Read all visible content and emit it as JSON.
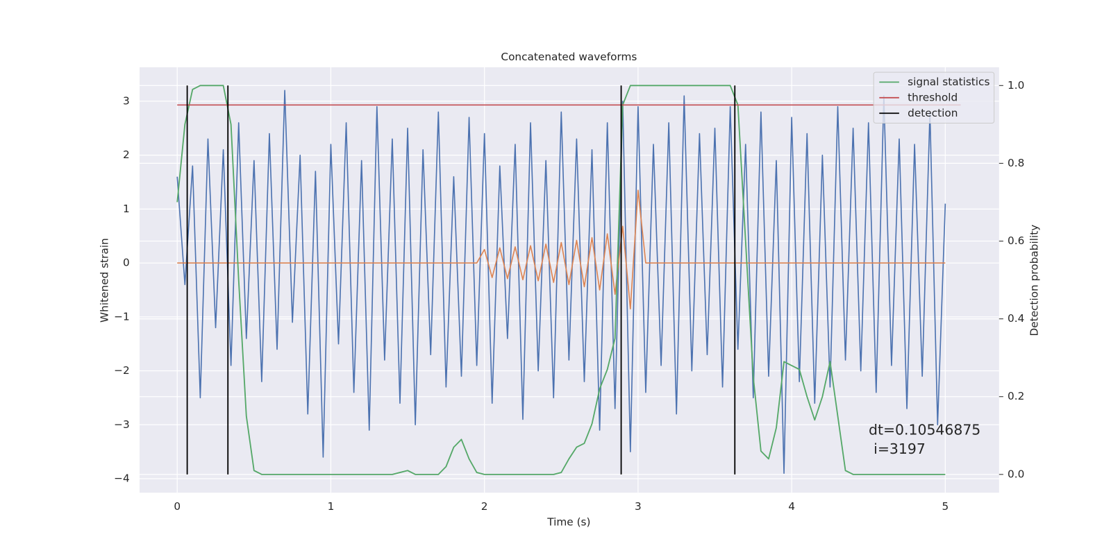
{
  "chart_data": {
    "type": "line",
    "title": "Concatenated waveforms",
    "xlabel": "Time (s)",
    "ylabel": "Whitened strain",
    "y2label": "Detection probability",
    "grid": true,
    "legend": "upper right",
    "xlim": [
      -0.245,
      5.35
    ],
    "xticks": [
      0,
      1,
      2,
      3,
      4,
      5
    ],
    "ylim": [
      -4.26,
      3.63
    ],
    "yticks": [
      {
        "value": -4,
        "label": "−4"
      },
      {
        "value": -3,
        "label": "−3"
      },
      {
        "value": -2,
        "label": "−2"
      },
      {
        "value": -1,
        "label": "−1"
      },
      0,
      1,
      2,
      3
    ],
    "y2lim": [
      -0.047,
      1.047
    ],
    "y2ticks": [
      {
        "value": 0,
        "label": "0.0"
      },
      0.2,
      0.4,
      0.6,
      0.8,
      {
        "value": 1,
        "label": "1.0"
      }
    ],
    "x": [
      0,
      0.05,
      0.1,
      0.15,
      0.2,
      0.25,
      0.3,
      0.35,
      0.4,
      0.45,
      0.5,
      0.55,
      0.6,
      0.65,
      0.7,
      0.75,
      0.8,
      0.85,
      0.9,
      0.95,
      1,
      1.05,
      1.1,
      1.15,
      1.2,
      1.25,
      1.3,
      1.35,
      1.4,
      1.45,
      1.5,
      1.55,
      1.6,
      1.65,
      1.7,
      1.75,
      1.8,
      1.85,
      1.9,
      1.95,
      2,
      2.05,
      2.1,
      2.15,
      2.2,
      2.25,
      2.3,
      2.35,
      2.4,
      2.45,
      2.5,
      2.55,
      2.6,
      2.65,
      2.7,
      2.75,
      2.8,
      2.85,
      2.9,
      2.95,
      3,
      3.05,
      3.1,
      3.15,
      3.2,
      3.25,
      3.3,
      3.35,
      3.4,
      3.45,
      3.5,
      3.55,
      3.6,
      3.65,
      3.7,
      3.75,
      3.8,
      3.85,
      3.9,
      3.95,
      4,
      4.05,
      4.1,
      4.15,
      4.2,
      4.25,
      4.3,
      4.35,
      4.4,
      4.45,
      4.5,
      4.55,
      4.6,
      4.65,
      4.7,
      4.75,
      4.8,
      4.85,
      4.9,
      4.95,
      5
    ],
    "series": [
      {
        "color": "#4c72b0",
        "values": [
          1.6,
          -0.4,
          1.8,
          -2.5,
          2.3,
          -1.2,
          2.1,
          -1.9,
          2.6,
          -1.4,
          1.9,
          -2.2,
          2.4,
          -1.6,
          3.2,
          -1.1,
          2.0,
          -2.8,
          1.7,
          -3.6,
          2.2,
          -1.5,
          2.6,
          -2.4,
          1.9,
          -3.1,
          2.9,
          -1.8,
          2.3,
          -2.6,
          2.5,
          -3.0,
          2.1,
          -1.7,
          2.8,
          -2.3,
          1.6,
          -2.1,
          2.7,
          -1.9,
          2.4,
          -2.6,
          1.8,
          -1.4,
          2.2,
          -2.9,
          2.6,
          -2.0,
          1.9,
          -2.5,
          2.8,
          -1.8,
          2.3,
          -2.2,
          2.1,
          -3.1,
          2.6,
          -2.7,
          3.0,
          -3.5,
          2.9,
          -2.4,
          2.2,
          -1.9,
          2.6,
          -2.8,
          3.1,
          -2.0,
          2.4,
          -1.7,
          2.5,
          -2.3,
          2.9,
          -1.6,
          2.2,
          -2.5,
          2.8,
          -2.1,
          1.9,
          -3.9,
          2.7,
          -2.2,
          2.4,
          -2.6,
          2.0,
          -2.3,
          2.9,
          -1.8,
          2.5,
          -2.0,
          2.6,
          -2.4,
          3.1,
          -1.9,
          2.3,
          -2.7,
          2.2,
          -2.1,
          2.8,
          -3.0,
          1.1
        ]
      },
      {
        "color": "#dd8452",
        "values": [
          0,
          0,
          0,
          0,
          0,
          0,
          0,
          0,
          0,
          0,
          0,
          0,
          0,
          0,
          0,
          0,
          0,
          0,
          0,
          0,
          0,
          0,
          0,
          0,
          0,
          0,
          0,
          0,
          0,
          0,
          0,
          0,
          0,
          0,
          0,
          0,
          0,
          0,
          0,
          0,
          0.25,
          -0.27,
          0.28,
          -0.29,
          0.3,
          -0.31,
          0.32,
          -0.33,
          0.35,
          -0.36,
          0.38,
          -0.4,
          0.42,
          -0.44,
          0.47,
          -0.5,
          0.54,
          -0.58,
          0.68,
          -0.85,
          1.35,
          0,
          0,
          0,
          0,
          0,
          0,
          0,
          0,
          0,
          0,
          0,
          0,
          0,
          0,
          0,
          0,
          0,
          0,
          0,
          0,
          0,
          0,
          0,
          0,
          0,
          0,
          0,
          0,
          0,
          0,
          0,
          0,
          0,
          0,
          0,
          0,
          0,
          0,
          0,
          0
        ]
      },
      {
        "name": "signal statistics",
        "color": "#55a868",
        "axis": "y2",
        "values": [
          0.7,
          0.9,
          0.99,
          1,
          1,
          1,
          1,
          0.9,
          0.5,
          0.15,
          0.01,
          0,
          0,
          0,
          0,
          0,
          0,
          0,
          0,
          0,
          0,
          0,
          0,
          0,
          0,
          0,
          0,
          0,
          0,
          0.005,
          0.01,
          0,
          0,
          0,
          0,
          0.02,
          0.07,
          0.09,
          0.04,
          0.005,
          0,
          0,
          0,
          0,
          0,
          0,
          0,
          0,
          0,
          0,
          0.005,
          0.04,
          0.07,
          0.08,
          0.13,
          0.22,
          0.27,
          0.35,
          0.95,
          1,
          1,
          1,
          1,
          1,
          1,
          1,
          1,
          1,
          1,
          1,
          1,
          1,
          1,
          0.95,
          0.6,
          0.25,
          0.06,
          0.04,
          0.12,
          0.29,
          0.28,
          0.27,
          0.2,
          0.14,
          0.2,
          0.29,
          0.15,
          0.01,
          0,
          0,
          0,
          0,
          0,
          0,
          0,
          0,
          0,
          0,
          0,
          0,
          0
        ]
      }
    ],
    "threshold": {
      "name": "threshold",
      "color": "#c44e52",
      "axis": "y2",
      "value": 0.95,
      "xrange": [
        0,
        5.1
      ]
    },
    "detection": {
      "name": "detection",
      "color": "#000000",
      "axis": "y2",
      "x": [
        0.065,
        0.33,
        2.89,
        3.63
      ],
      "range": [
        0,
        1
      ]
    },
    "annotation": [
      "dt=0.10546875",
      "i=3197"
    ]
  }
}
